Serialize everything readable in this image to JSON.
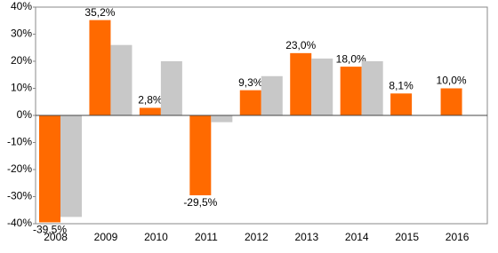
{
  "chart_data": {
    "type": "bar",
    "categories": [
      "2008",
      "2009",
      "2010",
      "2011",
      "2012",
      "2013",
      "2014",
      "2015",
      "2016"
    ],
    "series": [
      {
        "color": "#ff6a00",
        "values": [
          -39.5,
          35.2,
          2.8,
          -29.5,
          9.3,
          23.0,
          18.0,
          8.1,
          10.0
        ],
        "value_labels": [
          "-39,5%",
          "35,2%",
          "2,8%",
          "-29,5%",
          "9,3%",
          "23,0%",
          "18,0%",
          "8,1%",
          "10,0%"
        ]
      },
      {
        "color": "#c8c8c8",
        "values": [
          -37.5,
          26,
          20,
          -2.5,
          14.5,
          21,
          20,
          null,
          null
        ]
      }
    ],
    "ylim": [
      -40,
      40
    ],
    "yticks": [
      {
        "value": -40,
        "label": "-40%"
      },
      {
        "value": -30,
        "label": "-30%"
      },
      {
        "value": -20,
        "label": "-20%"
      },
      {
        "value": -10,
        "label": "-10%"
      },
      {
        "value": 0,
        "label": "0%"
      },
      {
        "value": 10,
        "label": "10%"
      },
      {
        "value": 20,
        "label": "20%"
      },
      {
        "value": 30,
        "label": "30%"
      },
      {
        "value": 40,
        "label": "40%"
      }
    ],
    "grid": false
  }
}
